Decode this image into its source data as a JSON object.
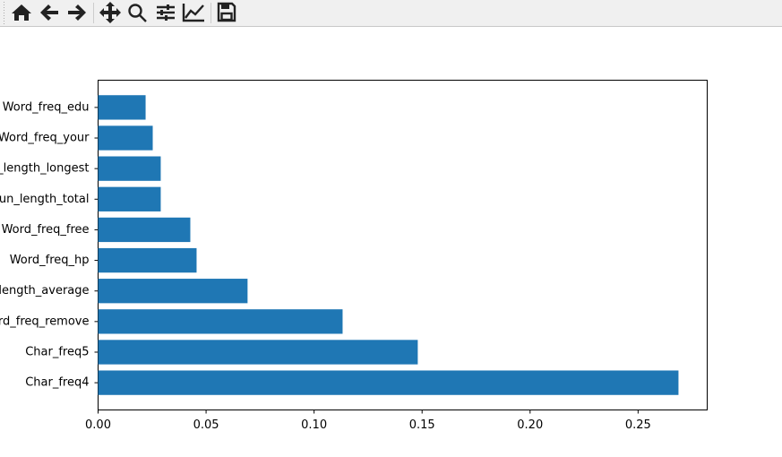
{
  "chart_data": {
    "type": "barh",
    "categories": [
      "Char_freq4",
      "Char_freq5",
      "rd_freq_remove",
      "length_average",
      "Word_freq_hp",
      "Word_freq_free",
      "un_length_total",
      "_length_longest",
      "Word_freq_your",
      "Word_freq_edu"
    ],
    "values": [
      0.2687,
      0.148,
      0.1132,
      0.0692,
      0.0456,
      0.0427,
      0.029,
      0.029,
      0.0253,
      0.022
    ],
    "color": "#1f77b4",
    "xlim": [
      0,
      0.282
    ],
    "xticks": [
      {
        "value": 0,
        "label": "0.00"
      },
      {
        "value": 0.05,
        "label": "0.05"
      },
      {
        "value": 0.1,
        "label": "0.10"
      },
      {
        "value": 0.15,
        "label": "0.15"
      },
      {
        "value": 0.2,
        "label": "0.20"
      },
      {
        "value": 0.25,
        "label": "0.25"
      }
    ],
    "grid": false
  }
}
